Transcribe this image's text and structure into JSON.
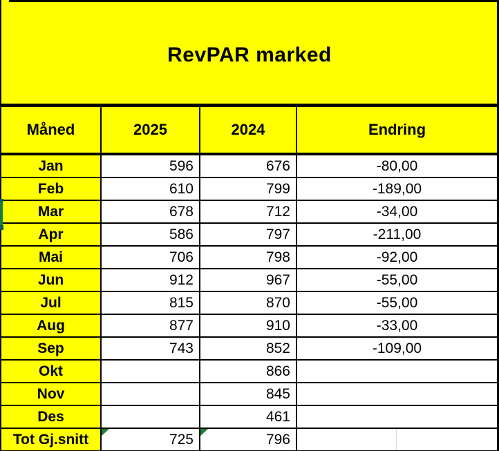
{
  "title": "RevPAR marked",
  "columns": {
    "month": "Måned",
    "y2025": "2025",
    "y2024": "2024",
    "change": "Endring"
  },
  "rows": [
    {
      "month": "Jan",
      "y2025": "596",
      "y2024": "676",
      "change": "-80,00"
    },
    {
      "month": "Feb",
      "y2025": "610",
      "y2024": "799",
      "change": "-189,00"
    },
    {
      "month": "Mar",
      "y2025": "678",
      "y2024": "712",
      "change": "-34,00"
    },
    {
      "month": "Apr",
      "y2025": "586",
      "y2024": "797",
      "change": "-211,00"
    },
    {
      "month": "Mai",
      "y2025": "706",
      "y2024": "798",
      "change": "-92,00"
    },
    {
      "month": "Jun",
      "y2025": "912",
      "y2024": "967",
      "change": "-55,00"
    },
    {
      "month": "Jul",
      "y2025": "815",
      "y2024": "870",
      "change": "-55,00"
    },
    {
      "month": "Aug",
      "y2025": "877",
      "y2024": "910",
      "change": "-33,00"
    },
    {
      "month": "Sep",
      "y2025": "743",
      "y2024": "852",
      "change": "-109,00"
    },
    {
      "month": "Okt",
      "y2025": "",
      "y2024": "866",
      "change": ""
    },
    {
      "month": "Nov",
      "y2025": "",
      "y2024": "845",
      "change": ""
    },
    {
      "month": "Des",
      "y2025": "",
      "y2024": "461",
      "change": ""
    },
    {
      "month": "Tot Gj.snitt",
      "y2025": "725",
      "y2024": "796",
      "change": "",
      "is_total": true,
      "error_indicators": [
        "y2025",
        "y2024"
      ],
      "has_split_gridline": true
    }
  ],
  "colors": {
    "highlight_yellow": "#ffff00",
    "grid_border": "#000000",
    "cell_background": "#ffffff",
    "error_indicator_green": "#1e7e34",
    "artifact_green": "#1b7a45",
    "artifact_teal": "#0c5b55",
    "faint_gridline": "#d9d9d9"
  }
}
